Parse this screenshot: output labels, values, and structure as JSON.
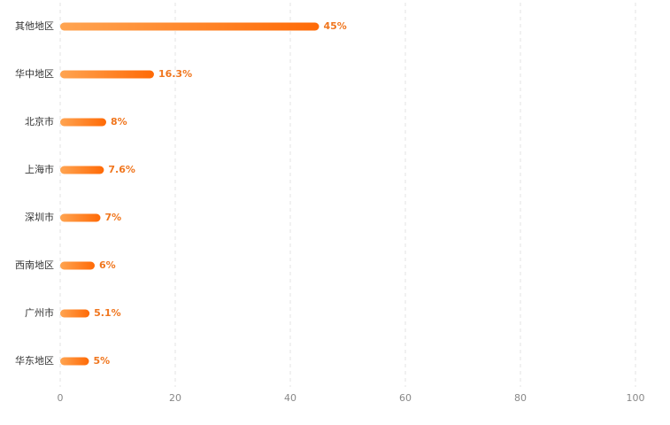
{
  "chart_data": {
    "type": "hbar",
    "categories": [
      "其他地区",
      "华中地区",
      "北京市",
      "上海市",
      "深圳市",
      "西南地区",
      "广州市",
      "华东地区"
    ],
    "values": [
      45,
      16.3,
      8,
      7.6,
      7,
      6,
      5.1,
      5
    ],
    "value_labels": [
      "45%",
      "16.3%",
      "8%",
      "7.6%",
      "7%",
      "6%",
      "5.1%",
      "5%"
    ],
    "gradient": [
      "#ffa451",
      "#ff6a06"
    ],
    "xlim": [
      0,
      100
    ],
    "xticks": [
      0,
      20,
      40,
      60,
      80,
      100
    ],
    "grid": true
  }
}
